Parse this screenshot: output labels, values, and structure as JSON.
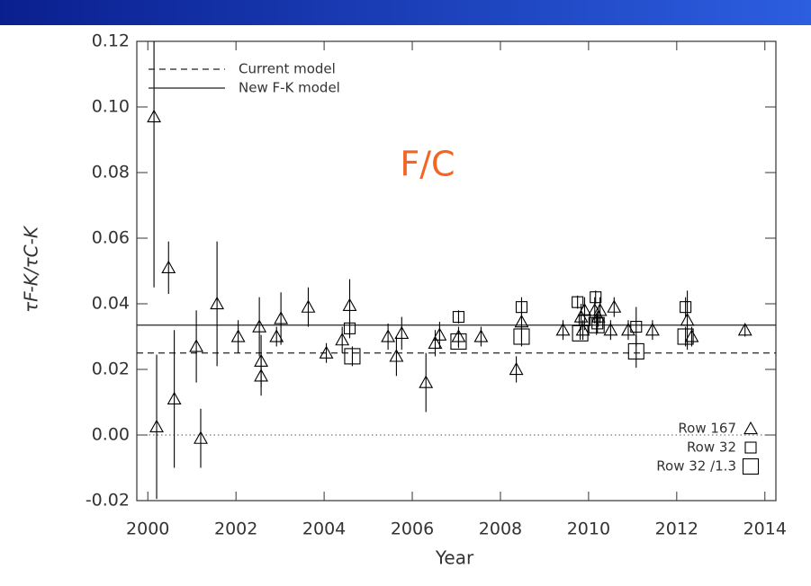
{
  "chart_data": {
    "type": "scatter",
    "annotation": "F/C",
    "x_label": "Year",
    "y_label": "τF-K/τC-K",
    "xlim": [
      1999.75,
      2014.25
    ],
    "xticks": [
      2000,
      2002,
      2004,
      2006,
      2008,
      2010,
      2012,
      2014
    ],
    "ylim": [
      -0.02,
      0.12
    ],
    "yticks": [
      {
        "value": -0.02,
        "label": "-0.02"
      },
      {
        "value": 0,
        "label": "0.00"
      },
      0.02,
      0.04,
      0.06,
      0.08,
      {
        "value": 0.1,
        "label": "0.10"
      },
      0.12
    ],
    "lines": [
      {
        "name": "Current model",
        "value": 0.025,
        "style": "dashed"
      },
      {
        "name": "New F-K model",
        "value": 0.0335,
        "style": "solid"
      }
    ],
    "zero_line": {
      "value": 0,
      "style": "dotted"
    },
    "series": [
      {
        "name": "Row 167",
        "marker": "triangle",
        "color": "#000000",
        "x": [
          2000.14,
          2000.2,
          2000.47,
          2000.6,
          2001.1,
          2001.2,
          2001.57,
          2002.05,
          2002.53,
          2002.57,
          2002.57,
          2002.92,
          2003.02,
          2003.64,
          2004.05,
          2004.41,
          2004.58,
          2005.45,
          2005.64,
          2005.76,
          2006.31,
          2006.52,
          2006.62,
          2007.05,
          2007.56,
          2008.36,
          2008.48,
          2009.42,
          2009.83,
          2009.87,
          2009.91,
          2010.14,
          2010.22,
          2010.26,
          2010.5,
          2010.58,
          2010.9,
          2011.45,
          2012.24,
          2012.34,
          2013.55
        ],
        "values": [
          0.097,
          0.0025,
          0.051,
          0.011,
          0.027,
          -0.001,
          0.04,
          0.03,
          0.033,
          0.0225,
          0.018,
          0.03,
          0.0355,
          0.039,
          0.025,
          0.029,
          0.0395,
          0.03,
          0.024,
          0.031,
          0.016,
          0.028,
          0.0305,
          0.03,
          0.03,
          0.02,
          0.0345,
          0.032,
          0.036,
          0.032,
          0.038,
          0.038,
          0.036,
          0.038,
          0.032,
          0.039,
          0.032,
          0.032,
          0.035,
          0.03,
          0.032
        ],
        "errors": [
          0.052,
          0.022,
          0.008,
          0.021,
          0.011,
          0.009,
          0.019,
          0.005,
          0.009,
          0.008,
          0.006,
          0.003,
          0.008,
          0.006,
          0.003,
          0.004,
          0.008,
          0.004,
          0.006,
          0.005,
          0.009,
          0.004,
          0.004,
          0.003,
          0.003,
          0.004,
          0.006,
          0.003,
          0.004,
          0.003,
          0.004,
          0.004,
          0.003,
          0.004,
          0.003,
          0.003,
          0.003,
          0.003,
          0.009,
          0.003,
          0.002
        ]
      },
      {
        "name": "Row 32",
        "marker": "square",
        "color": "#000000",
        "x": [
          2004.58,
          2007.05,
          2008.48,
          2009.75,
          2009.91,
          2010.16,
          2010.2,
          2011.08,
          2012.2
        ],
        "values": [
          0.0325,
          0.036,
          0.039,
          0.0405,
          0.035,
          0.042,
          0.034,
          0.033,
          0.039
        ],
        "errors": [
          0.003,
          0.002,
          0.003,
          0.002,
          0.003,
          0.002,
          0.003,
          0.006,
          0.003
        ]
      },
      {
        "name": "Row 32 /1.3",
        "marker": "big-square",
        "color": "#000000",
        "x": [
          2004.64,
          2007.05,
          2008.48,
          2009.81,
          2010.18,
          2011.08,
          2012.2
        ],
        "values": [
          0.024,
          0.0285,
          0.03,
          0.031,
          0.0335,
          0.0255,
          0.03
        ],
        "errors": [
          0.003,
          0.002,
          0.003,
          0.002,
          0.003,
          0.005,
          0.003
        ]
      }
    ]
  }
}
